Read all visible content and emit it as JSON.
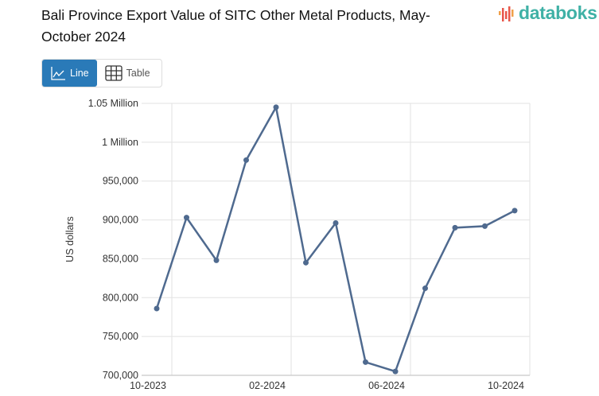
{
  "title": "Bali Province Export Value of SITC Other Metal Products, May-October 2024",
  "logo": {
    "text": "databoks",
    "accent": "#e8574a",
    "color": "#3fb1a6"
  },
  "view_toggle": {
    "line_label": "Line",
    "table_label": "Table",
    "active": "Line",
    "active_color": "#2a7ab8"
  },
  "chart_data": {
    "type": "line",
    "title": "Bali Province Export Value of SITC Other Metal Products, May-October 2024",
    "ylabel": "US dollars",
    "xlabel": "",
    "x": [
      "10-2023",
      "11-2023",
      "12-2023",
      "01-2024",
      "02-2024",
      "03-2024",
      "04-2024",
      "05-2024",
      "06-2024",
      "07-2024",
      "08-2024",
      "09-2024",
      "10-2024"
    ],
    "series": [
      {
        "values": [
          786000,
          903000,
          848000,
          977000,
          1045000,
          845000,
          896000,
          717000,
          705000,
          812000,
          890000,
          892000,
          912000
        ],
        "color": "#4f6a8f"
      }
    ],
    "ylim": [
      700000,
      1050000
    ],
    "yticks": [
      700000,
      750000,
      800000,
      850000,
      900000,
      950000,
      1000000,
      1050000
    ],
    "ytick_labels": [
      "700,000",
      "750,000",
      "800,000",
      "850,000",
      "900,000",
      "950,000",
      "1 Million",
      "1.05 Million"
    ],
    "xtick_labels": [
      "10-2023",
      "02-2024",
      "06-2024",
      "10-2024"
    ],
    "grid": true,
    "legend": "none"
  }
}
